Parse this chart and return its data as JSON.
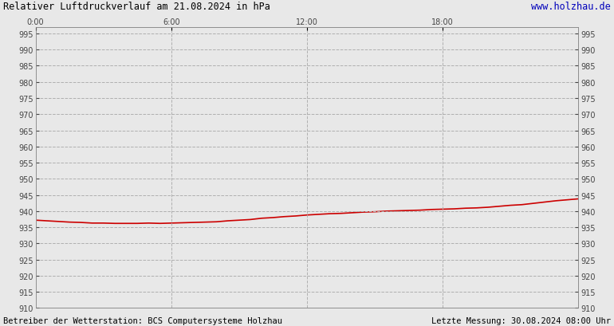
{
  "title": "Relativer Luftdruckverlauf am 21.08.2024 in hPa",
  "url_text": "www.holzhau.de",
  "footer_left": "Betreiber der Wetterstation: BCS Computersysteme Holzhau",
  "footer_right": "Letzte Messung: 30.08.2024 08:00 Uhr",
  "ylim": [
    910,
    997
  ],
  "ytick_step": 5,
  "xlim": [
    0,
    1440
  ],
  "xticks": [
    0,
    360,
    720,
    1080,
    1440
  ],
  "xtick_labels": [
    "0:00",
    "6:00",
    "12:00",
    "18:00",
    ""
  ],
  "background_color": "#e8e8e8",
  "plot_bg_color": "#e8e8e8",
  "grid_color": "#b0b0b0",
  "line_color": "#cc0000",
  "line_width": 1.2,
  "pressure_x": [
    0,
    30,
    60,
    90,
    120,
    150,
    180,
    210,
    240,
    270,
    300,
    330,
    360,
    390,
    420,
    450,
    480,
    510,
    540,
    570,
    600,
    630,
    660,
    690,
    720,
    750,
    780,
    810,
    840,
    870,
    900,
    930,
    960,
    990,
    1020,
    1050,
    1080,
    1110,
    1140,
    1170,
    1200,
    1230,
    1260,
    1290,
    1320,
    1350,
    1380,
    1410,
    1440
  ],
  "pressure_y": [
    937.2,
    937.0,
    936.8,
    936.6,
    936.5,
    936.3,
    936.3,
    936.2,
    936.2,
    936.2,
    936.3,
    936.2,
    936.3,
    936.4,
    936.5,
    936.6,
    936.7,
    937.0,
    937.2,
    937.4,
    937.8,
    938.0,
    938.3,
    938.5,
    938.8,
    939.0,
    939.2,
    939.3,
    939.5,
    939.7,
    939.8,
    940.0,
    940.1,
    940.2,
    940.3,
    940.5,
    940.6,
    940.7,
    940.9,
    941.0,
    941.2,
    941.5,
    941.8,
    942.0,
    942.4,
    942.8,
    943.2,
    943.5,
    943.8
  ]
}
